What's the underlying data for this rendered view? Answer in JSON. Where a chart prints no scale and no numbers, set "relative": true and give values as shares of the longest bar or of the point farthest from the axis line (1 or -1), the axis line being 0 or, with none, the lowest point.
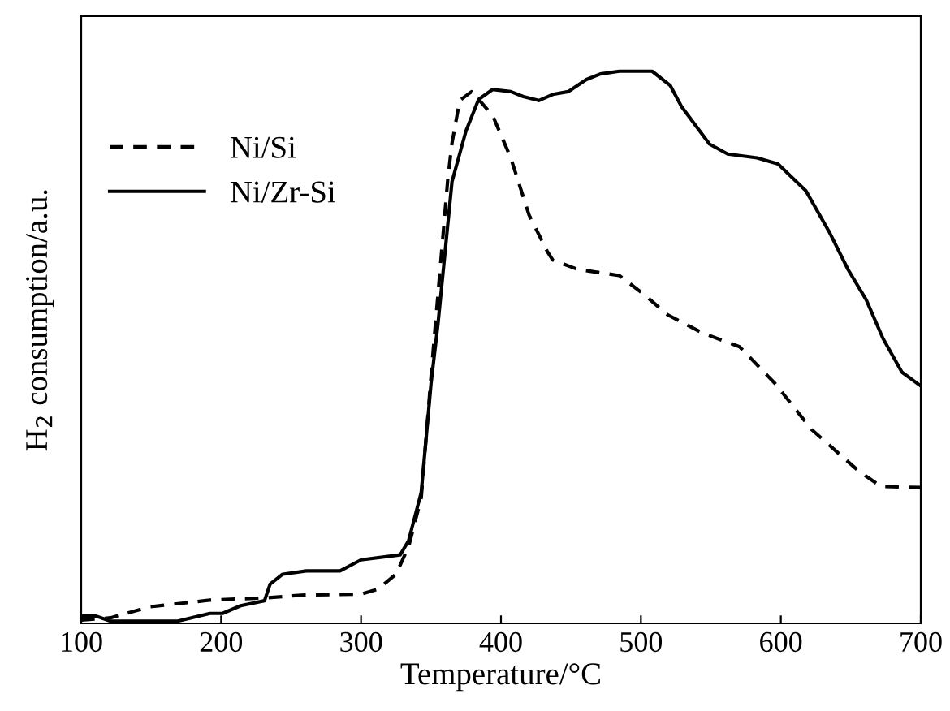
{
  "chart_data": {
    "type": "line",
    "relative": true,
    "xlabel": "Temperature/°C",
    "ylabel": "H$_{2}$ consumption/a.u.",
    "xlim": [
      100,
      700
    ],
    "xticks": [
      100,
      200,
      300,
      400,
      500,
      600,
      700
    ],
    "tick_labels": "x",
    "legend": "upper left",
    "grid": false,
    "series": [
      {
        "name": "Ni/Si",
        "color": "#000000",
        "line_style": "dashed",
        "x": [
          100,
          121,
          149,
          192,
          231,
          257,
          300,
          312,
          325,
          334,
          343,
          351,
          362,
          365,
          370.5,
          379,
          384,
          394,
          407,
          420,
          433,
          437,
          455,
          484.5,
          501.6,
          519,
          544,
          570.5,
          596,
          622,
          639,
          656,
          671.5,
          700
        ],
        "values": [
          0.006,
          0.01,
          0.03,
          0.042,
          0.046,
          0.051,
          0.053,
          0.062,
          0.089,
          0.139,
          0.227,
          0.478,
          0.805,
          0.87,
          0.947,
          0.963,
          0.949,
          0.92,
          0.843,
          0.74,
          0.674,
          0.658,
          0.641,
          0.63,
          0.597,
          0.559,
          0.526,
          0.501,
          0.434,
          0.351,
          0.313,
          0.275,
          0.248,
          0.246
        ]
      },
      {
        "name": "Ni/Zr-Si",
        "color": "#000000",
        "line_style": "solid",
        "x": [
          100,
          110.8,
          121,
          169,
          192,
          201,
          214,
          231,
          235,
          244,
          261,
          285,
          300,
          328,
          334,
          343,
          350,
          355,
          365,
          375,
          384,
          394,
          407,
          416,
          427,
          437,
          448,
          461,
          471,
          484.5,
          508,
          521,
          529,
          549,
          562,
          583,
          598,
          618,
          635,
          648,
          661,
          673,
          686.5,
          700
        ],
        "values": [
          0.013,
          0.013,
          0.004,
          0.004,
          0.018,
          0.018,
          0.032,
          0.041,
          0.071,
          0.089,
          0.095,
          0.095,
          0.115,
          0.124,
          0.15,
          0.237,
          0.434,
          0.543,
          0.8,
          0.892,
          0.949,
          0.967,
          0.963,
          0.954,
          0.947,
          0.958,
          0.963,
          0.985,
          0.995,
          1.0,
          1.0,
          0.974,
          0.936,
          0.868,
          0.85,
          0.843,
          0.832,
          0.783,
          0.707,
          0.641,
          0.586,
          0.516,
          0.455,
          0.43
        ]
      }
    ]
  }
}
